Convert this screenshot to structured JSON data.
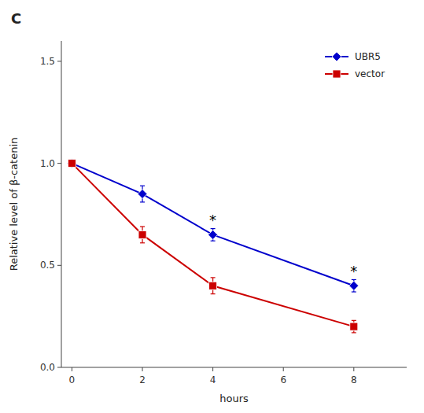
{
  "chart_data": {
    "type": "line",
    "title": "C",
    "xlabel": "hours",
    "ylabel": "Relative level of β-catenin",
    "x": [
      0,
      2,
      4,
      8
    ],
    "series": [
      {
        "name": "UBR5",
        "color": "#0000CC",
        "marker": "diamond",
        "values": [
          1.0,
          0.85,
          0.65,
          0.4
        ],
        "errors": [
          0.0,
          0.04,
          0.03,
          0.03
        ]
      },
      {
        "name": "vector",
        "color": "#CC0000",
        "marker": "square",
        "values": [
          1.0,
          0.65,
          0.4,
          0.2
        ],
        "errors": [
          0.0,
          0.04,
          0.04,
          0.03
        ]
      }
    ],
    "annotations": [
      {
        "text": "*",
        "x": 4,
        "y": 0.72
      },
      {
        "text": "*",
        "x": 8,
        "y": 0.47
      }
    ],
    "xlim": [
      -0.3,
      9.5
    ],
    "ylim": [
      0.0,
      1.6
    ],
    "xticks": [
      0,
      2,
      4,
      6,
      8
    ],
    "yticks": [
      {
        "value": 0.0,
        "label": "0.0"
      },
      0.5,
      {
        "value": 1.0,
        "label": "1.0"
      },
      1.5
    ],
    "grid": false,
    "legend": "upper right"
  }
}
